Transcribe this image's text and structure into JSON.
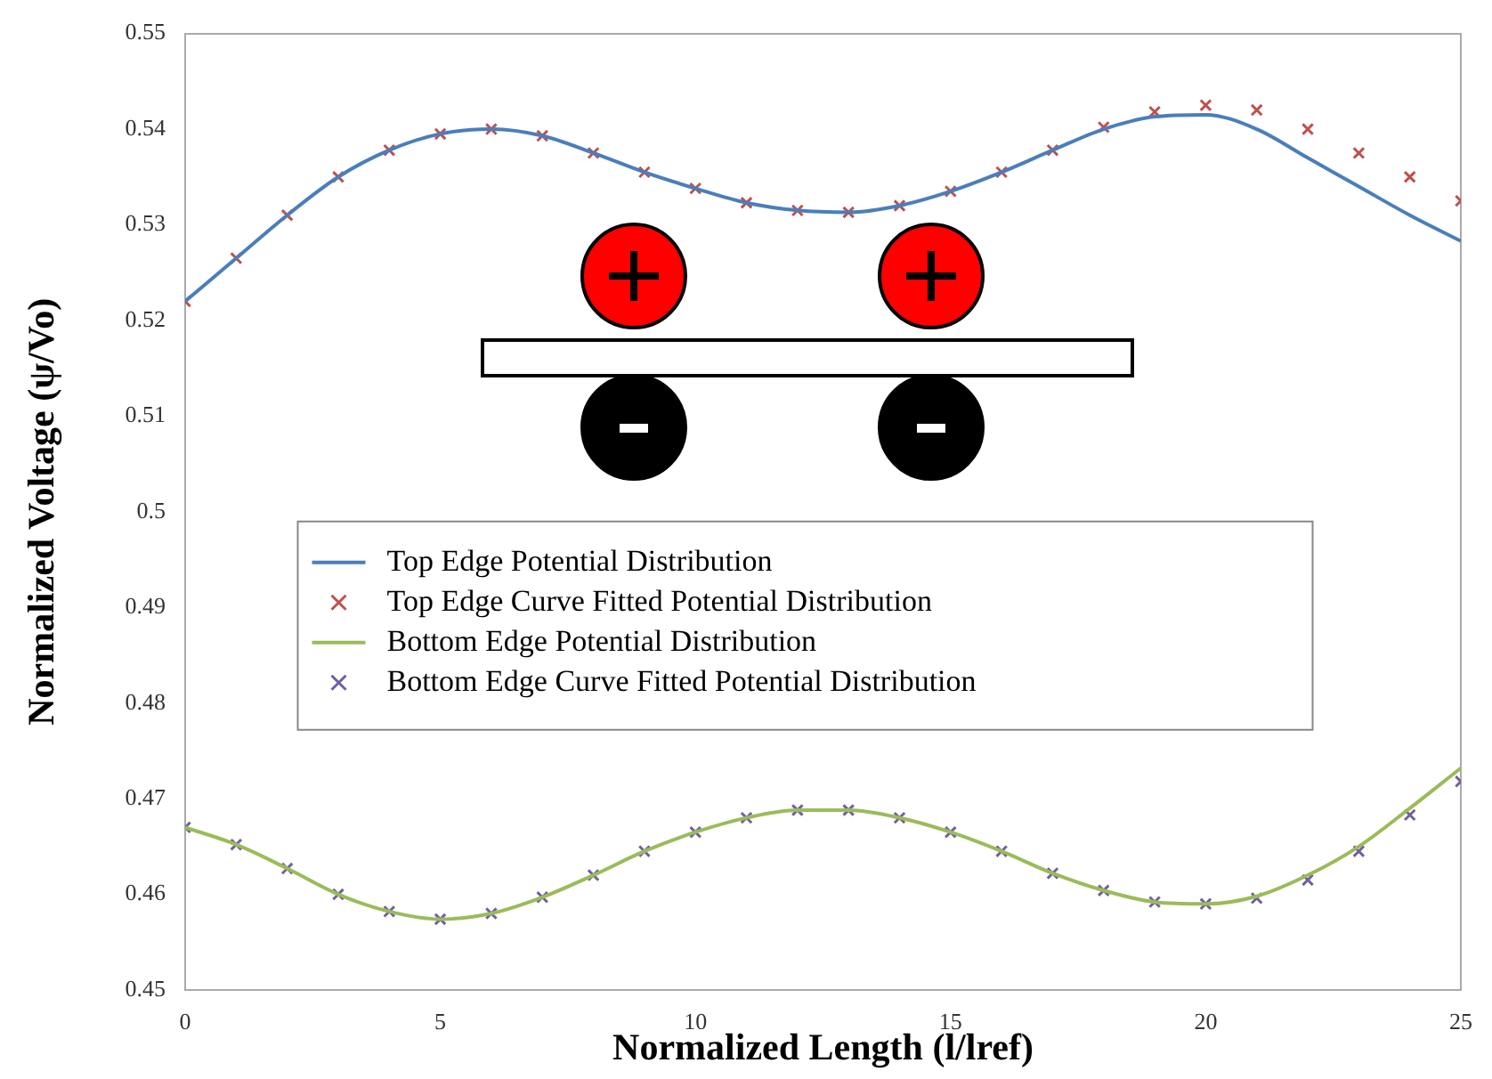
{
  "chart_data": {
    "type": "line",
    "xlabel": "Normalized Length (l/lref)",
    "ylabel": "Normalized Voltage (ψ/Vo)",
    "xlim": [
      0,
      25
    ],
    "xticks": [
      0,
      5,
      10,
      15,
      20,
      25
    ],
    "ylim": [
      0.45,
      0.55
    ],
    "yticks": [
      0.45,
      0.46,
      0.47,
      0.48,
      0.49,
      0.5,
      0.51,
      0.52,
      0.53,
      0.54,
      0.55
    ],
    "grid": false,
    "legend": "center",
    "x": [
      0,
      1,
      2,
      3,
      4,
      5,
      6,
      7,
      8,
      9,
      10,
      11,
      12,
      13,
      14,
      15,
      16,
      17,
      18,
      19,
      20,
      21,
      22,
      23,
      24,
      25
    ],
    "series": [
      {
        "name": "Top Edge Potential Distribution",
        "marker": "none",
        "color": "#4a7ebb",
        "values": [
          0.522,
          0.5265,
          0.531,
          0.535,
          0.5378,
          0.5395,
          0.54,
          0.5393,
          0.5375,
          0.5355,
          0.5338,
          0.5323,
          0.5315,
          0.5313,
          0.532,
          0.5335,
          0.5355,
          0.5378,
          0.54,
          0.5413,
          0.5415,
          0.54,
          0.537,
          0.534,
          0.531,
          0.5283
        ]
      },
      {
        "name": "Top Edge Curve Fitted Potential Distribution",
        "type": "scatter",
        "marker": "cross",
        "color": "#c0504d",
        "values": [
          0.522,
          0.5265,
          0.531,
          0.535,
          0.5378,
          0.5395,
          0.54,
          0.5393,
          0.5375,
          0.5355,
          0.5338,
          0.5323,
          0.5315,
          0.5313,
          0.532,
          0.5335,
          0.5355,
          0.5378,
          0.5402,
          0.5418,
          0.5425,
          0.542,
          0.54,
          0.5375,
          0.535,
          0.5325
        ]
      },
      {
        "name": "Bottom Edge Potential Distribution",
        "marker": "none",
        "color": "#9bbb59",
        "values": [
          0.467,
          0.4652,
          0.4627,
          0.46,
          0.4582,
          0.4574,
          0.458,
          0.4597,
          0.462,
          0.4645,
          0.4665,
          0.468,
          0.4688,
          0.4688,
          0.468,
          0.4665,
          0.4645,
          0.4622,
          0.4604,
          0.4592,
          0.459,
          0.4598,
          0.462,
          0.465,
          0.469,
          0.4732
        ]
      },
      {
        "name": "Bottom Edge Curve Fitted Potential Distribution",
        "type": "scatter",
        "marker": "cross",
        "color": "#7060a0",
        "values": [
          0.467,
          0.4652,
          0.4627,
          0.46,
          0.4582,
          0.4574,
          0.458,
          0.4597,
          0.462,
          0.4645,
          0.4665,
          0.468,
          0.4688,
          0.4688,
          0.468,
          0.4665,
          0.4645,
          0.4622,
          0.4604,
          0.4592,
          0.459,
          0.4596,
          0.4615,
          0.4645,
          0.4683,
          0.4718
        ]
      }
    ]
  }
}
